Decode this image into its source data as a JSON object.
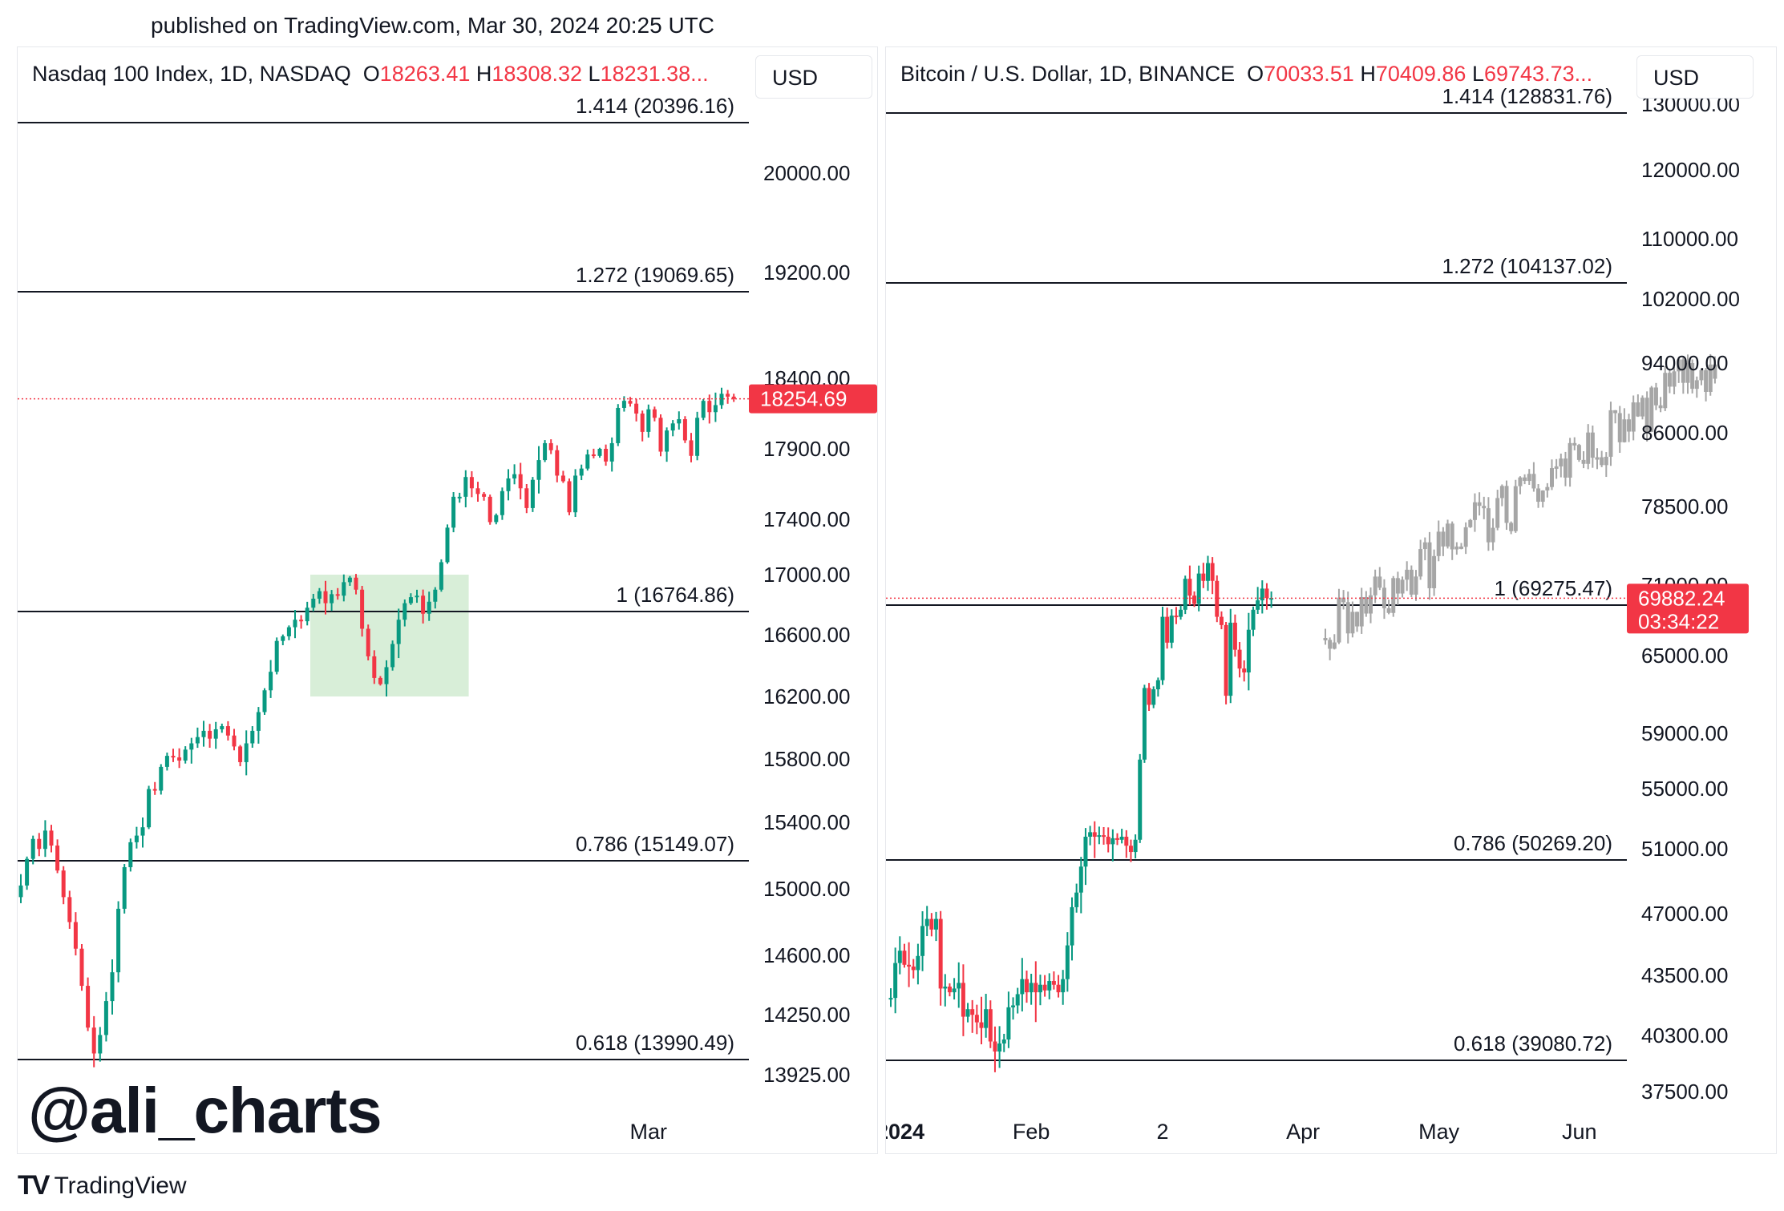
{
  "published": "published on TradingView.com, Mar 30, 2024 20:25 UTC",
  "watermark": "@ali_charts",
  "footer": {
    "logo_text": "TV",
    "brand": "TradingView"
  },
  "colors": {
    "up": "#089981",
    "down": "#f23645",
    "projected": "#a6a6a6",
    "highlight": "#d8eed8",
    "line": "#131722"
  },
  "chart_data": [
    {
      "type": "candlestick",
      "title": "Nasdaq 100 Index, 1D, NASDAQ",
      "currency": "USD",
      "ohlc_labels": {
        "o_prefix": "O",
        "o": "18263.41",
        "h_prefix": "H",
        "h": "18308.32",
        "l_prefix": "L",
        "l": "18231.38..."
      },
      "last_price": "18254.69",
      "last_price_value": 18254.69,
      "y_ticks": [
        "20000.00",
        "19200.00",
        "18400.00",
        "17900.00",
        "17400.00",
        "17000.00",
        "16600.00",
        "16200.00",
        "15800.00",
        "15400.00",
        "15000.00",
        "14600.00",
        "14250.00",
        "13925.00"
      ],
      "y_tick_values": [
        20000,
        19200,
        18400,
        17900,
        17400,
        17000,
        16600,
        16200,
        15800,
        15400,
        15000,
        14600,
        14250,
        13925
      ],
      "x_ticks": [
        {
          "label": "Mar",
          "index": 103
        }
      ],
      "fib_levels": [
        {
          "label": "1.414 (20396.16)",
          "value": 20396.16
        },
        {
          "label": "1.272 (19069.65)",
          "value": 19069.65
        },
        {
          "label": "1 (16764.86)",
          "value": 16764.86
        },
        {
          "label": "0.786 (15149.07)",
          "value": 15149.07
        },
        {
          "label": "0.618 (13990.49)",
          "value": 13990.49
        }
      ],
      "highlight_box": {
        "from_index": 48,
        "to_index": 74,
        "top": 17000,
        "bottom": 16200
      },
      "start": 14950,
      "closes": [
        15020,
        15180,
        15300,
        15240,
        15350,
        15260,
        15110,
        14950,
        14800,
        14640,
        14420,
        14180,
        14040,
        14140,
        14330,
        14500,
        14880,
        15130,
        15280,
        15320,
        15370,
        15610,
        15600,
        15750,
        15820,
        15810,
        15790,
        15860,
        15900,
        15940,
        15980,
        15930,
        15990,
        16010,
        15950,
        15880,
        15780,
        15900,
        15980,
        16100,
        16240,
        16360,
        16560,
        16590,
        16650,
        16700,
        16690,
        16780,
        16840,
        16890,
        16810,
        16870,
        16860,
        16950,
        16980,
        16900,
        16640,
        16460,
        16320,
        16280,
        16390,
        16540,
        16700,
        16810,
        16850,
        16860,
        16740,
        16820,
        16900,
        17090,
        17340,
        17560,
        17560,
        17700,
        17620,
        17580,
        17560,
        17380,
        17430,
        17600,
        17690,
        17720,
        17620,
        17480,
        17680,
        17820,
        17940,
        17890,
        17710,
        17670,
        17450,
        17710,
        17760,
        17860,
        17850,
        17900,
        17810,
        17940,
        18190,
        18240,
        18220,
        18150,
        18020,
        18180,
        18120,
        17880,
        18030,
        18080,
        18110,
        17960,
        17850,
        18120,
        18240,
        18160,
        18210,
        18290,
        18270,
        18254
      ]
    },
    {
      "type": "candlestick",
      "title": "Bitcoin / U.S. Dollar, 1D, BINANCE",
      "currency": "USD",
      "ohlc_labels": {
        "o_prefix": "O",
        "o": "70033.51",
        "h_prefix": "H",
        "h": "70409.86",
        "l_prefix": "L",
        "l": "69743.73..."
      },
      "last_price": "69882.24",
      "last_price_value": 69882.24,
      "countdown": "03:34:22",
      "y_ticks": [
        "130000.00",
        "120000.00",
        "110000.00",
        "102000.00",
        "94000.00",
        "86000.00",
        "78500.00",
        "71000.00",
        "65000.00",
        "59000.00",
        "55000.00",
        "51000.00",
        "47000.00",
        "43500.00",
        "40300.00",
        "37500.00"
      ],
      "y_tick_values": [
        130000,
        120000,
        110000,
        102000,
        94000,
        86000,
        78500,
        71000,
        65000,
        59000,
        55000,
        51000,
        47000,
        43500,
        40300,
        37500
      ],
      "x_ticks": [
        {
          "label": "2024",
          "index": 0
        },
        {
          "label": "Feb",
          "index": 31
        },
        {
          "label": "2",
          "index": 60
        },
        {
          "label": "Apr",
          "index": 91
        },
        {
          "label": "May",
          "index": 121
        },
        {
          "label": "Jun",
          "index": 152
        }
      ],
      "fib_levels": [
        {
          "label": "1.414 (128831.76)",
          "value": 128831.76
        },
        {
          "label": "1.272 (104137.02)",
          "value": 104137.02
        },
        {
          "label": "1 (69275.47)",
          "value": 69275.47
        },
        {
          "label": "0.786 (50269.20)",
          "value": 50269.2
        },
        {
          "label": "0.618 (39080.72)",
          "value": 39080.72
        }
      ],
      "start": 42300,
      "closes": [
        42300,
        44200,
        44900,
        44100,
        44000,
        43800,
        44600,
        46300,
        46700,
        46100,
        46700,
        42800,
        42900,
        42600,
        42800,
        43100,
        41300,
        41700,
        41400,
        41000,
        40700,
        41700,
        40000,
        39500,
        39900,
        40100,
        41800,
        41900,
        42500,
        43300,
        42600,
        43100,
        42600,
        43000,
        42700,
        43200,
        43000,
        42600,
        43300,
        45200,
        47400,
        48300,
        49900,
        51800,
        52100,
        51800,
        51900,
        51800,
        51300,
        51700,
        51600,
        51800,
        51200,
        50800,
        51600,
        57100,
        62500,
        61200,
        62400,
        63100,
        68300,
        66100,
        68400,
        68300,
        68900,
        71600,
        70100,
        69400,
        72100,
        71400,
        73100,
        71400,
        68300,
        67600,
        61900,
        67800,
        65500,
        64000,
        63700,
        67200,
        68900,
        69700,
        70700,
        69900,
        69900
      ]
    }
  ]
}
